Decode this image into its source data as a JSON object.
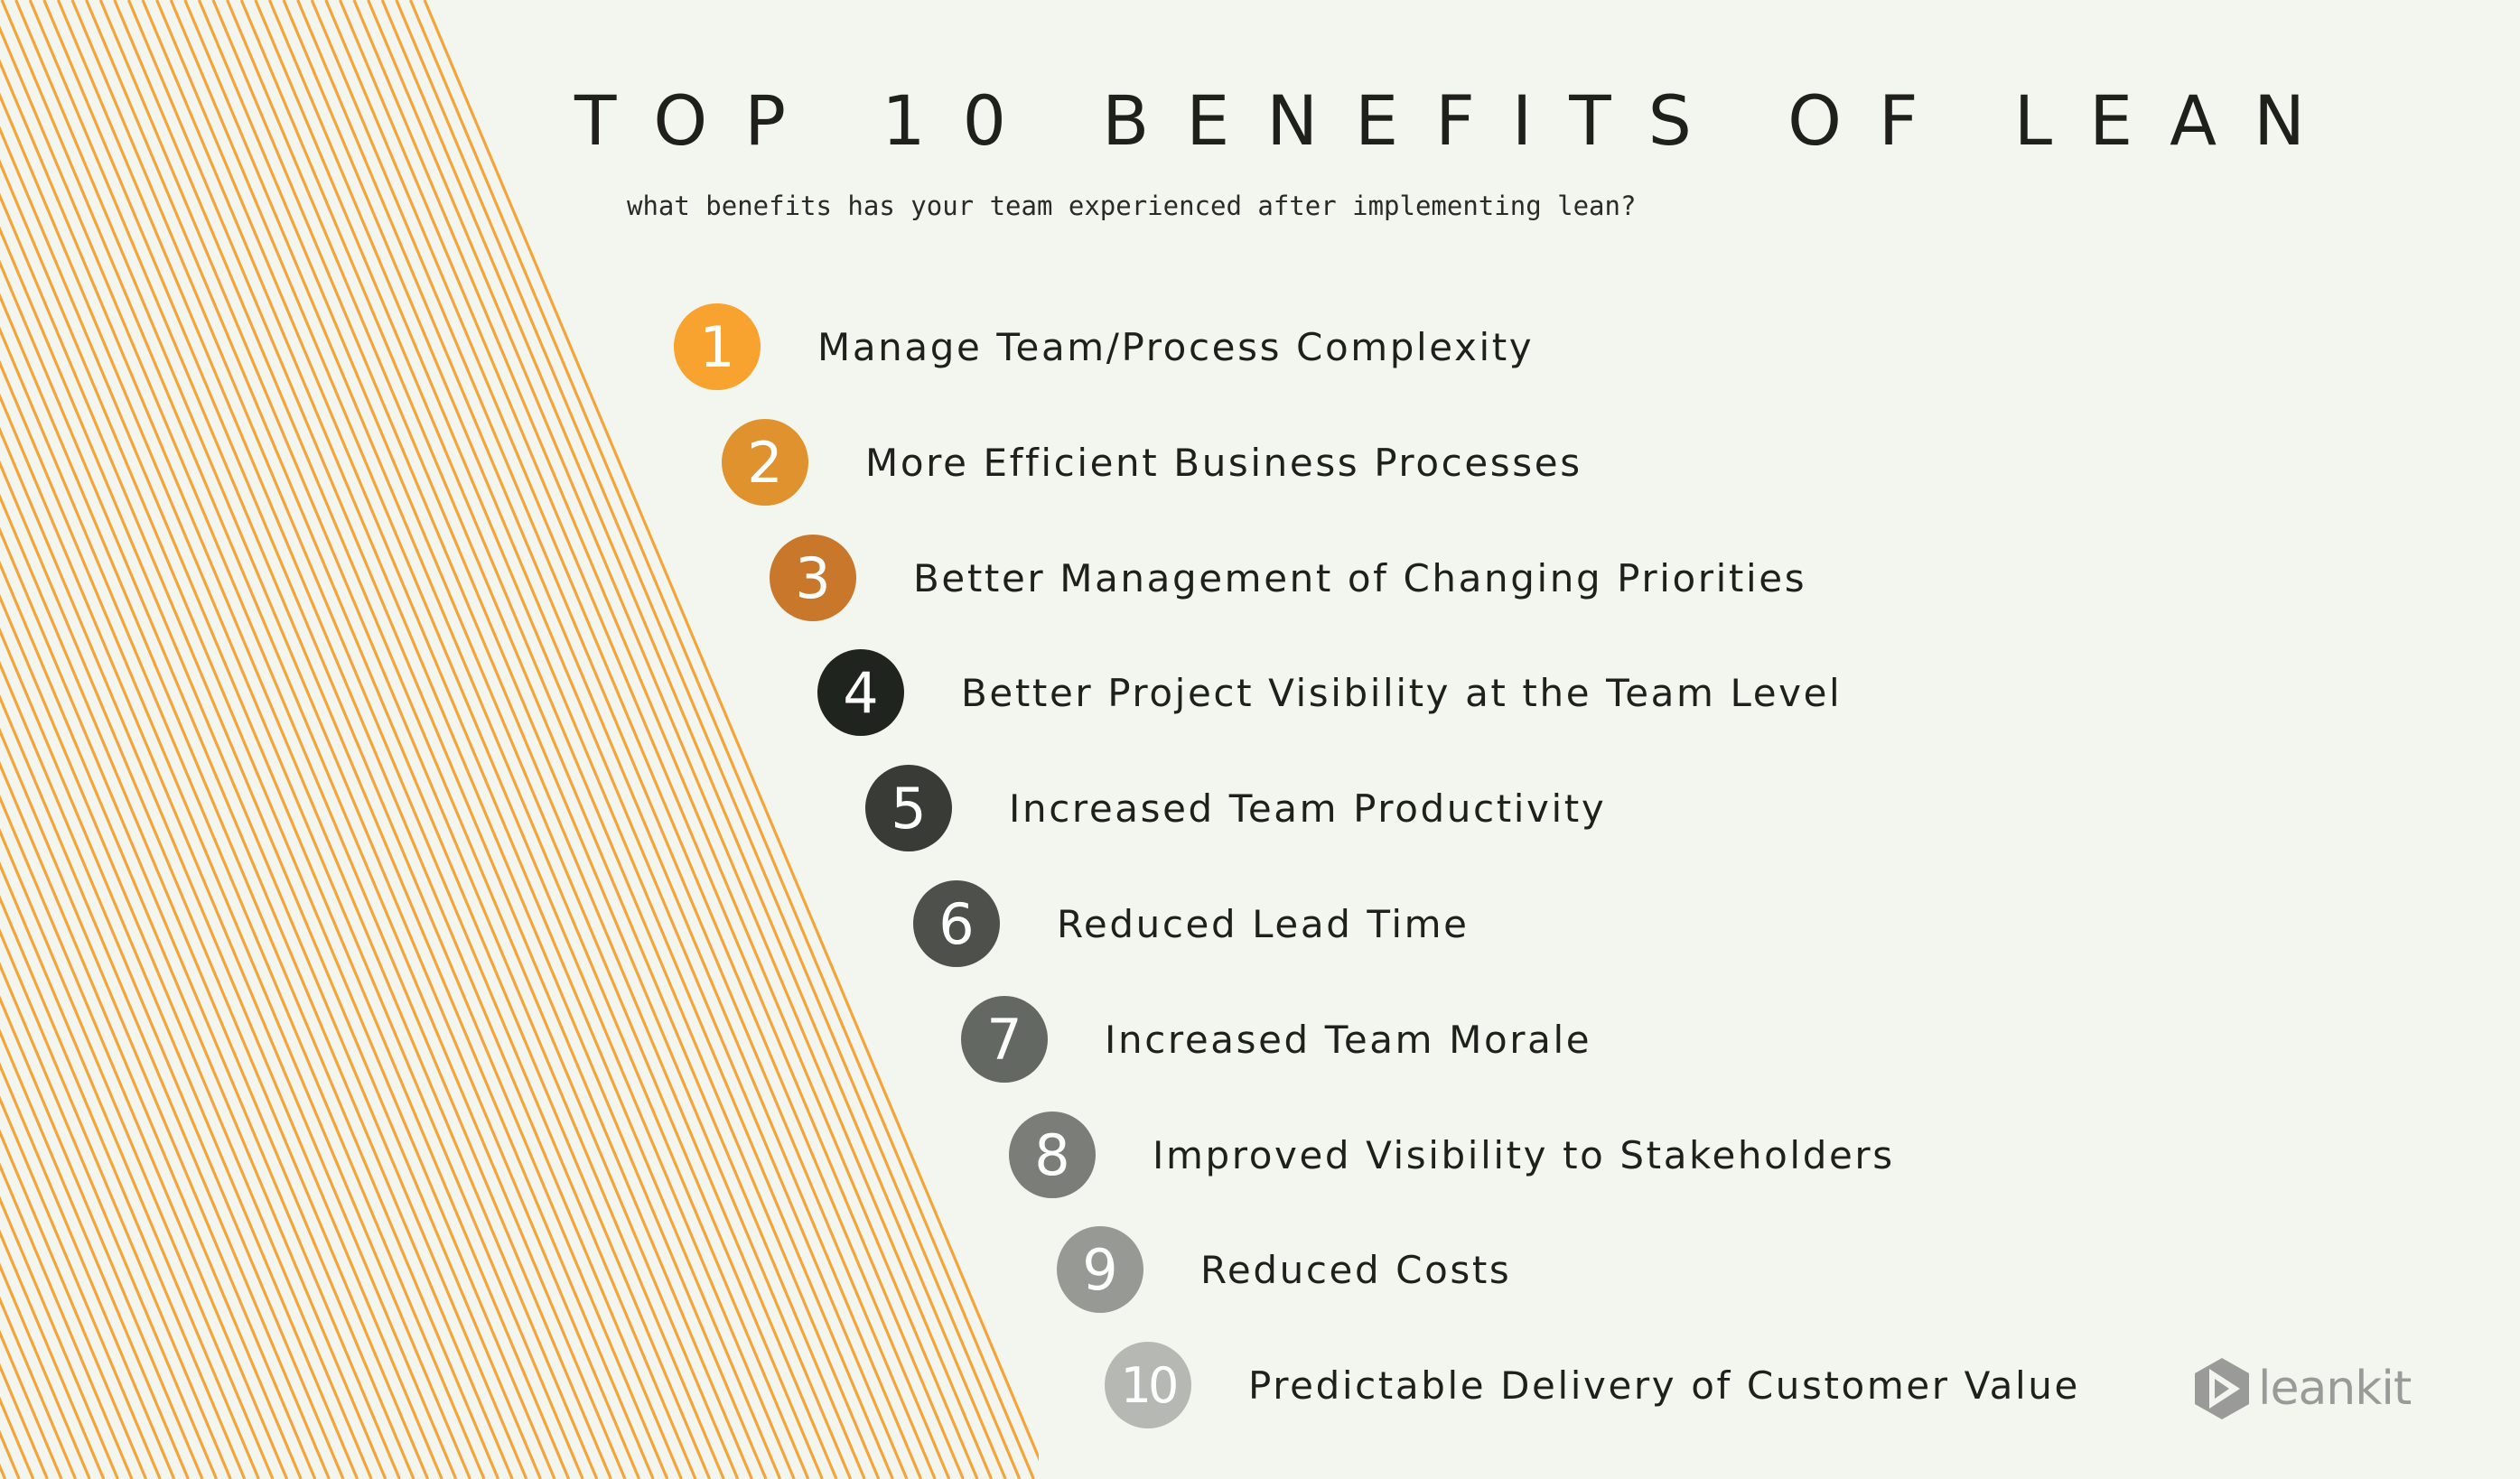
{
  "title": "TOP 10 BENEFITS OF LEAN",
  "subtitle": "what benefits has your team experienced after implementing lean?",
  "benefits": [
    {
      "number": "1",
      "label": "Manage Team/Process Complexity",
      "color": "#f8a22f"
    },
    {
      "number": "2",
      "label": "More Efficient Business Processes",
      "color": "#e0922e"
    },
    {
      "number": "3",
      "label": "Better Management of Changing Priorities",
      "color": "#c9772b"
    },
    {
      "number": "4",
      "label": "Better Project Visibility at the Team Level",
      "color": "#20241f"
    },
    {
      "number": "5",
      "label": "Increased Team Productivity",
      "color": "#383b36"
    },
    {
      "number": "6",
      "label": "Reduced Lead Time",
      "color": "#4d504b"
    },
    {
      "number": "7",
      "label": "Increased Team Morale",
      "color": "#646862"
    },
    {
      "number": "8",
      "label": "Improved Visibility to Stakeholders",
      "color": "#7b7e78"
    },
    {
      "number": "9",
      "label": "Reduced Costs",
      "color": "#979a94"
    },
    {
      "number": "10",
      "label": "Predictable Delivery of Customer Value",
      "color": "#b6b9b3"
    }
  ],
  "logo": {
    "text": "leankit",
    "icon": "leankit-hexagon-play-icon",
    "color": "#9a9a98"
  },
  "colors": {
    "background": "#f3f6ef",
    "stripes": "#f3a53a",
    "text": "#1f1f1c"
  }
}
